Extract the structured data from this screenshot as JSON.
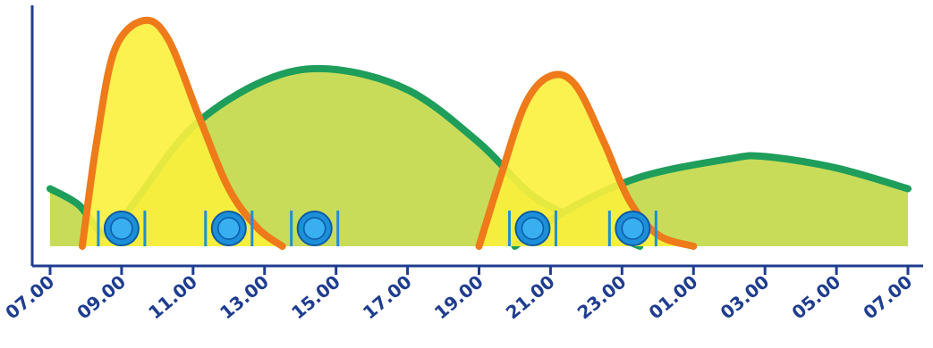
{
  "chart_data": {
    "type": "area",
    "title": "",
    "xlabel": "",
    "ylabel": "",
    "x_ticks": [
      "07.00",
      "09.00",
      "11.00",
      "13.00",
      "15.00",
      "17.00",
      "19.00",
      "21.00",
      "23.00",
      "01.00",
      "03.00",
      "05.00",
      "07.00"
    ],
    "x_range_hours": [
      0,
      24
    ],
    "y_range": [
      0,
      1
    ],
    "grid": false,
    "legend": "none",
    "series": [
      {
        "color": "#1e9e5a",
        "fill": "#c8dc5a",
        "points": [
          {
            "h": 0,
            "y": 0.25
          },
          {
            "h": 0.8,
            "y": 0.18
          },
          {
            "h": 1.6,
            "y": 0.05
          },
          {
            "h": 2.5,
            "y": 0.22
          },
          {
            "h": 4.0,
            "y": 0.52
          },
          {
            "h": 6.0,
            "y": 0.72
          },
          {
            "h": 7.8,
            "y": 0.77
          },
          {
            "h": 10.0,
            "y": 0.68
          },
          {
            "h": 12.0,
            "y": 0.45
          },
          {
            "h": 13.5,
            "y": 0.22
          },
          {
            "h": 15.0,
            "y": 0.1
          },
          {
            "h": 16.5,
            "y": 0.0
          }
        ]
      },
      {
        "color": "#1e9e5a",
        "fill": "#c8dc5a",
        "points": [
          {
            "h": 13.0,
            "y": 0.0
          },
          {
            "h": 14.5,
            "y": 0.16
          },
          {
            "h": 16.5,
            "y": 0.3
          },
          {
            "h": 19.0,
            "y": 0.38
          },
          {
            "h": 20.0,
            "y": 0.39
          },
          {
            "h": 22.0,
            "y": 0.34
          },
          {
            "h": 24.0,
            "y": 0.25
          }
        ]
      },
      {
        "color": "#ee7a1a",
        "fill": "#fbef3c",
        "points": [
          {
            "h": 0.9,
            "y": 0.0
          },
          {
            "h": 1.3,
            "y": 0.45
          },
          {
            "h": 1.8,
            "y": 0.85
          },
          {
            "h": 2.6,
            "y": 0.98
          },
          {
            "h": 3.3,
            "y": 0.9
          },
          {
            "h": 4.2,
            "y": 0.55
          },
          {
            "h": 5.0,
            "y": 0.25
          },
          {
            "h": 5.8,
            "y": 0.08
          },
          {
            "h": 6.5,
            "y": 0.0
          }
        ]
      },
      {
        "color": "#ee7a1a",
        "fill": "#fbef3c",
        "points": [
          {
            "h": 12.0,
            "y": 0.0
          },
          {
            "h": 12.6,
            "y": 0.3
          },
          {
            "h": 13.3,
            "y": 0.62
          },
          {
            "h": 14.0,
            "y": 0.74
          },
          {
            "h": 14.7,
            "y": 0.7
          },
          {
            "h": 15.5,
            "y": 0.45
          },
          {
            "h": 16.2,
            "y": 0.2
          },
          {
            "h": 17.0,
            "y": 0.05
          },
          {
            "h": 18.0,
            "y": 0.0
          }
        ]
      }
    ],
    "meal_markers": {
      "icon": "plate-with-cutlery-icon",
      "color": "#1c8fd8",
      "hours": [
        2.0,
        5.0,
        7.4,
        13.5,
        16.3
      ]
    }
  }
}
